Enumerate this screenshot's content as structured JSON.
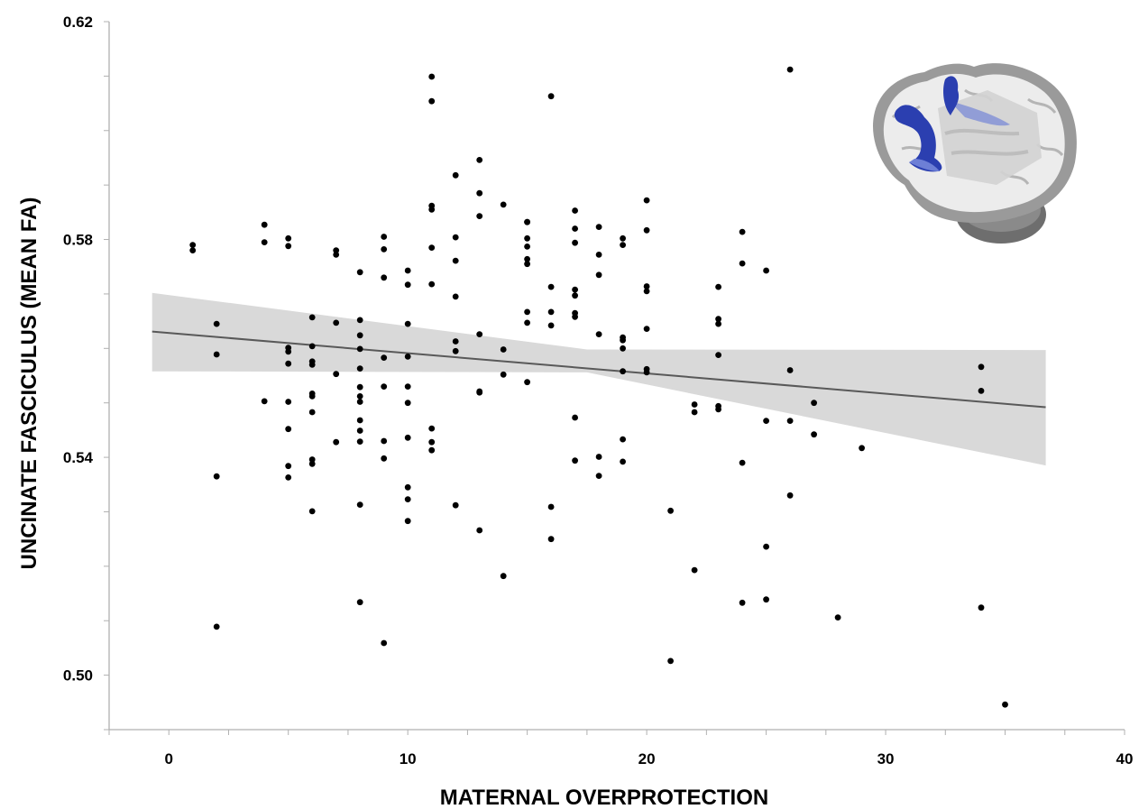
{
  "chart_data": {
    "type": "scatter",
    "xlabel": "MATERNAL OVERPROTECTION",
    "ylabel": "UNCINATE FASCICULUS (MEAN FA)",
    "xlim": [
      -2.5,
      40
    ],
    "ylim": [
      0.49,
      0.62
    ],
    "x_ticks": [
      0,
      10,
      20,
      30,
      40
    ],
    "y_ticks": [
      0.5,
      0.54,
      0.58,
      0.62
    ],
    "x_tick_labels": [
      "0",
      "10",
      "20",
      "30",
      "40"
    ],
    "y_tick_labels": [
      "0.50",
      "0.54",
      "0.58",
      "0.62"
    ],
    "grid": false,
    "legend": "none",
    "colors": {
      "points": "#000000",
      "fit_line": "#595959",
      "confidence_band": "#d9d9d9",
      "tract": "#2b3fb0"
    },
    "inset_image": "brain-uncinate-fasciculus-render",
    "regression": {
      "x": [
        -0.7,
        36.7
      ],
      "y": [
        0.5631,
        0.5492
      ],
      "ci_lower": [
        0.5558,
        0.5385
      ],
      "ci_upper": [
        0.5702,
        0.5597
      ],
      "ci_mid_x": 17.5,
      "ci_mid_lower": 0.5556,
      "ci_mid_upper": 0.5598
    },
    "points": [
      [
        1,
        0.579
      ],
      [
        1,
        0.578
      ],
      [
        2,
        0.5645
      ],
      [
        2,
        0.5589
      ],
      [
        2,
        0.5365
      ],
      [
        2,
        0.5089
      ],
      [
        4,
        0.5827
      ],
      [
        4,
        0.5795
      ],
      [
        4,
        0.5503
      ],
      [
        5,
        0.5802
      ],
      [
        5,
        0.5788
      ],
      [
        5,
        0.5601
      ],
      [
        5,
        0.5594
      ],
      [
        5,
        0.5572
      ],
      [
        5,
        0.5502
      ],
      [
        5,
        0.5452
      ],
      [
        5,
        0.5384
      ],
      [
        5,
        0.5363
      ],
      [
        6,
        0.5657
      ],
      [
        6,
        0.5604
      ],
      [
        6,
        0.5576
      ],
      [
        6,
        0.557
      ],
      [
        6,
        0.5517
      ],
      [
        6,
        0.5512
      ],
      [
        6,
        0.5483
      ],
      [
        6,
        0.5396
      ],
      [
        6,
        0.5388
      ],
      [
        6,
        0.5301
      ],
      [
        7,
        0.578
      ],
      [
        7,
        0.5772
      ],
      [
        7,
        0.5647
      ],
      [
        7,
        0.5553
      ],
      [
        7,
        0.5428
      ],
      [
        8,
        0.574
      ],
      [
        8,
        0.5652
      ],
      [
        8,
        0.5624
      ],
      [
        8,
        0.5599
      ],
      [
        8,
        0.5563
      ],
      [
        8,
        0.5529
      ],
      [
        8,
        0.5512
      ],
      [
        8,
        0.5502
      ],
      [
        8,
        0.5468
      ],
      [
        8,
        0.5449
      ],
      [
        8,
        0.5429
      ],
      [
        8,
        0.5313
      ],
      [
        8,
        0.5134
      ],
      [
        9,
        0.5805
      ],
      [
        9,
        0.5782
      ],
      [
        9,
        0.573
      ],
      [
        9,
        0.5583
      ],
      [
        9,
        0.553
      ],
      [
        9,
        0.543
      ],
      [
        9,
        0.5398
      ],
      [
        9,
        0.5059
      ],
      [
        10,
        0.5743
      ],
      [
        10,
        0.5717
      ],
      [
        10,
        0.5645
      ],
      [
        10,
        0.5585
      ],
      [
        10,
        0.553
      ],
      [
        10,
        0.55
      ],
      [
        10,
        0.5436
      ],
      [
        10,
        0.5345
      ],
      [
        10,
        0.5323
      ],
      [
        10,
        0.5283
      ],
      [
        11,
        0.6099
      ],
      [
        11,
        0.6054
      ],
      [
        11,
        0.5862
      ],
      [
        11,
        0.5855
      ],
      [
        11,
        0.5785
      ],
      [
        11,
        0.5718
      ],
      [
        11,
        0.5453
      ],
      [
        11,
        0.5428
      ],
      [
        11,
        0.5413
      ],
      [
        12,
        0.5918
      ],
      [
        12,
        0.5804
      ],
      [
        12,
        0.5761
      ],
      [
        12,
        0.5695
      ],
      [
        12,
        0.5613
      ],
      [
        12,
        0.5595
      ],
      [
        12,
        0.5312
      ],
      [
        13,
        0.5946
      ],
      [
        13,
        0.5885
      ],
      [
        13,
        0.5843
      ],
      [
        13,
        0.5626
      ],
      [
        13,
        0.5521
      ],
      [
        13,
        0.5519
      ],
      [
        13,
        0.5266
      ],
      [
        14,
        0.5864
      ],
      [
        14,
        0.5598
      ],
      [
        14,
        0.5552
      ],
      [
        14,
        0.5182
      ],
      [
        15,
        0.5832
      ],
      [
        15,
        0.5832
      ],
      [
        15,
        0.5802
      ],
      [
        15,
        0.5787
      ],
      [
        15,
        0.5764
      ],
      [
        15,
        0.5755
      ],
      [
        15,
        0.5667
      ],
      [
        15,
        0.5647
      ],
      [
        15,
        0.5538
      ],
      [
        16,
        0.6063
      ],
      [
        16,
        0.5713
      ],
      [
        16,
        0.5667
      ],
      [
        16,
        0.5642
      ],
      [
        16,
        0.5309
      ],
      [
        16,
        0.525
      ],
      [
        17,
        0.5853
      ],
      [
        17,
        0.582
      ],
      [
        17,
        0.5794
      ],
      [
        17,
        0.5708
      ],
      [
        17,
        0.5697
      ],
      [
        17,
        0.5665
      ],
      [
        17,
        0.5658
      ],
      [
        17,
        0.5473
      ],
      [
        17,
        0.5394
      ],
      [
        18,
        0.5823
      ],
      [
        18,
        0.5772
      ],
      [
        18,
        0.5735
      ],
      [
        18,
        0.5626
      ],
      [
        18,
        0.5401
      ],
      [
        18,
        0.5366
      ],
      [
        19,
        0.5802
      ],
      [
        19,
        0.579
      ],
      [
        19,
        0.562
      ],
      [
        19,
        0.5615
      ],
      [
        19,
        0.56
      ],
      [
        19,
        0.5558
      ],
      [
        19,
        0.5433
      ],
      [
        19,
        0.5392
      ],
      [
        20,
        0.5872
      ],
      [
        20,
        0.5817
      ],
      [
        20,
        0.5714
      ],
      [
        20,
        0.5705
      ],
      [
        20,
        0.5636
      ],
      [
        20,
        0.5562
      ],
      [
        20,
        0.5556
      ],
      [
        21,
        0.5302
      ],
      [
        21,
        0.5026
      ],
      [
        22,
        0.5497
      ],
      [
        22,
        0.5483
      ],
      [
        22,
        0.5193
      ],
      [
        23,
        0.5713
      ],
      [
        23,
        0.5654
      ],
      [
        23,
        0.5645
      ],
      [
        23,
        0.5588
      ],
      [
        23,
        0.5494
      ],
      [
        23,
        0.5488
      ],
      [
        24,
        0.5814
      ],
      [
        24,
        0.5756
      ],
      [
        24,
        0.539
      ],
      [
        24,
        0.5133
      ],
      [
        25,
        0.5743
      ],
      [
        25,
        0.5467
      ],
      [
        25,
        0.5236
      ],
      [
        25,
        0.5139
      ],
      [
        26,
        0.6112
      ],
      [
        26,
        0.556
      ],
      [
        26,
        0.5467
      ],
      [
        26,
        0.533
      ],
      [
        27,
        0.55
      ],
      [
        27,
        0.5442
      ],
      [
        28,
        0.5106
      ],
      [
        29,
        0.5417
      ],
      [
        34,
        0.5566
      ],
      [
        34,
        0.5522
      ],
      [
        34,
        0.5124
      ],
      [
        35,
        0.4946
      ]
    ]
  }
}
